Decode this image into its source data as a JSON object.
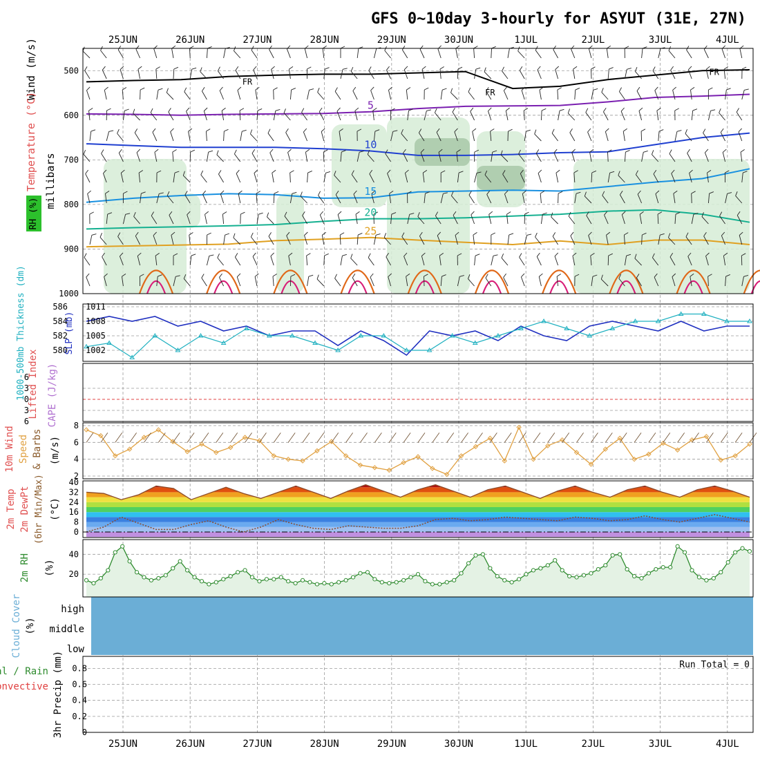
{
  "title": "GFS 0~10day 3-hourly for ASYUT (31E, 27N)",
  "date_labels": [
    "25JUN",
    "26JUN",
    "27JUN",
    "28JUN",
    "29JUN",
    "30JUN",
    "1JUL",
    "2JUL",
    "3JUL",
    "4JUL"
  ],
  "colors": {
    "frame": "#000000",
    "grid": "#9a9a9a",
    "t5": "#7a1fb0",
    "t10": "#1f3fd0",
    "t15": "#1890e0",
    "t20": "#14b090",
    "t25": "#e0a020",
    "t30": "#e06818",
    "t35": "#d81e78",
    "freezing": "#000000",
    "rh_fill": "#d6ecd6",
    "rh_fill2": "#93b793",
    "slp": "#1f2fc0",
    "thickness": "#1fb0c0",
    "lifted_zero": "#e04040",
    "wind10": "#e0a040",
    "barb": "#6a4a2a",
    "temp_dew": "#8a4a2a",
    "cloud": "#6baed6",
    "rh2m": "#2e8b2e"
  },
  "labels": {
    "wind": "Wind (m/s)",
    "temp": "Temperature (°C)",
    "rh": "RH (%)",
    "millibars": "millibars",
    "thickness": "1000-500mb Thickness (dm)",
    "slp": "SLP (mb)",
    "lifted": "Lifted Index",
    "cape": "CAPE (J/kg)",
    "wind10_1": "10m Wind",
    "wind10_2": "Speed",
    "wind10_3": "& Barbs",
    "wind10_unit": "(m/s)",
    "temp2m_1": "2m Temp",
    "temp2m_2": "2m DewPt",
    "temp2m_3": "(6hr Min/Max)",
    "temp2m_unit": "(°C)",
    "rh2m": "2m RH",
    "rh2m_unit": "(%)",
    "cloud": "Cloud Cover",
    "cloud_unit": "(%)",
    "precip_1": "Total / Rain",
    "precip_2": "Convective",
    "precip_3": "3hr Precip (mm)",
    "run_total": "Run Total = 0",
    "fr": "FR"
  },
  "chart_data": [
    {
      "type": "contour",
      "panel": "upper-air",
      "ylabel": "millibars",
      "y_ticks": [
        500,
        600,
        700,
        800,
        900,
        1000
      ],
      "ylim": [
        1000,
        450
      ],
      "x_days": [
        0,
        10
      ],
      "isotherms": [
        {
          "name": "5",
          "levels": [
            597,
            598,
            600,
            598,
            597,
            596,
            592,
            585,
            580,
            579,
            578,
            570,
            560,
            557,
            553
          ]
        },
        {
          "name": "10",
          "levels": [
            664,
            668,
            672,
            672,
            672,
            675,
            680,
            690,
            690,
            688,
            684,
            682,
            666,
            650,
            640
          ]
        },
        {
          "name": "15",
          "levels": [
            795,
            786,
            780,
            776,
            778,
            786,
            785,
            772,
            770,
            768,
            770,
            760,
            750,
            742,
            720
          ]
        },
        {
          "name": "20",
          "levels": [
            855,
            852,
            850,
            848,
            845,
            838,
            832,
            832,
            830,
            826,
            822,
            815,
            812,
            822,
            840
          ]
        },
        {
          "name": "25",
          "levels": [
            895,
            893,
            891,
            889,
            881,
            878,
            874,
            880,
            885,
            890,
            882,
            890,
            880,
            880,
            890
          ]
        }
      ],
      "freezing_level": [
        525,
        522,
        520,
        513,
        510,
        508,
        508,
        505,
        502,
        540,
        535,
        520,
        510,
        500,
        498
      ],
      "series_labels": [
        "5",
        "10",
        "15",
        "20",
        "25"
      ]
    },
    {
      "type": "line",
      "panel": "slp-thickness",
      "series": [
        {
          "name": "SLP (mb)",
          "values": [
            1008,
            1009,
            1008,
            1009,
            1007,
            1008,
            1006,
            1007,
            1005,
            1006,
            1006,
            1003,
            1006,
            1004,
            1001,
            1006,
            1005,
            1006,
            1004,
            1007,
            1005,
            1004,
            1007,
            1008,
            1007,
            1006,
            1008,
            1006,
            1007,
            1007
          ]
        },
        {
          "name": "1000-500mb Thickness (dm)",
          "values": [
            580.5,
            581,
            579,
            582,
            580,
            582,
            581,
            583,
            582,
            582,
            581,
            580,
            582,
            582,
            580,
            580,
            582,
            581,
            582,
            583,
            584,
            583,
            582,
            583,
            584,
            584,
            585,
            585,
            584,
            584
          ]
        }
      ],
      "slp_ticks": [
        1002,
        1005,
        1008,
        1011
      ],
      "thickness_ticks": [
        580,
        582,
        584,
        586
      ]
    },
    {
      "type": "line",
      "panel": "lifted-cape",
      "lifted_index_ticks": [
        6,
        3,
        0,
        3,
        6
      ],
      "series": []
    },
    {
      "type": "line",
      "panel": "wind10m",
      "y_ticks": [
        2,
        4,
        6,
        8
      ],
      "series": [
        {
          "name": "10m Wind Speed",
          "values": [
            7.5,
            6.8,
            4.4,
            5.2,
            6.6,
            7.5,
            6.1,
            4.9,
            5.8,
            4.8,
            5.4,
            6.6,
            6.2,
            4.4,
            4.0,
            3.8,
            5.0,
            6.1,
            4.4,
            3.3,
            3.0,
            2.7,
            3.6,
            4.3,
            2.9,
            2.2,
            4.4,
            5.5,
            6.5,
            3.8,
            7.8,
            4.0,
            5.6,
            6.3,
            4.8,
            3.4,
            5.2,
            6.5,
            4.0,
            4.6,
            5.9,
            5.1,
            6.3,
            6.7,
            3.9,
            4.4,
            5.8
          ]
        }
      ]
    },
    {
      "type": "area",
      "panel": "temp2m",
      "y_ticks": [
        0,
        8,
        16,
        24,
        32,
        40
      ],
      "series": [
        {
          "name": "2m Temp",
          "values": [
            32,
            31,
            26,
            30,
            37,
            35,
            26,
            31,
            36,
            31,
            27,
            32,
            37,
            32,
            27,
            33,
            38,
            33,
            28,
            34,
            38,
            33,
            28,
            34,
            37,
            32,
            27,
            33,
            37,
            32,
            28,
            34,
            37,
            32,
            28,
            34,
            37,
            33,
            28
          ]
        },
        {
          "name": "2m DewPt",
          "values": [
            0,
            4,
            12,
            7,
            2,
            2,
            6,
            9,
            4,
            0,
            4,
            10,
            6,
            3,
            2,
            5,
            4,
            3,
            3,
            5,
            10,
            11,
            9,
            10,
            12,
            11,
            10,
            9,
            12,
            11,
            9,
            10,
            13,
            10,
            8,
            11,
            14,
            11,
            8
          ]
        }
      ]
    },
    {
      "type": "area",
      "panel": "rh2m",
      "y_ticks": [
        20,
        40
      ],
      "series": [
        {
          "name": "2m RH",
          "values": [
            14,
            11,
            16,
            24,
            42,
            48,
            33,
            22,
            17,
            14,
            16,
            19,
            26,
            33,
            24,
            17,
            13,
            10,
            12,
            15,
            18,
            22,
            24,
            17,
            13,
            15,
            15,
            17,
            13,
            11,
            14,
            12,
            10,
            11,
            10,
            12,
            14,
            17,
            21,
            22,
            15,
            12,
            11,
            12,
            14,
            17,
            20,
            13,
            10,
            10,
            12,
            14,
            21,
            31,
            39,
            40,
            26,
            18,
            14,
            12,
            15,
            20,
            24,
            26,
            29,
            34,
            24,
            18,
            17,
            19,
            21,
            25,
            29,
            39,
            40,
            25,
            18,
            16,
            21,
            25,
            27,
            27,
            48,
            42,
            24,
            17,
            14,
            16,
            22,
            32,
            42,
            46,
            43
          ]
        }
      ]
    },
    {
      "type": "area",
      "panel": "cloud-cover",
      "categories": [
        "high",
        "middle",
        "low"
      ],
      "values": [
        100,
        100,
        100
      ]
    },
    {
      "type": "bar",
      "panel": "precip",
      "y_ticks": [
        0,
        0.2,
        0.4,
        0.6,
        0.8
      ],
      "values": [],
      "run_total": 0
    }
  ]
}
